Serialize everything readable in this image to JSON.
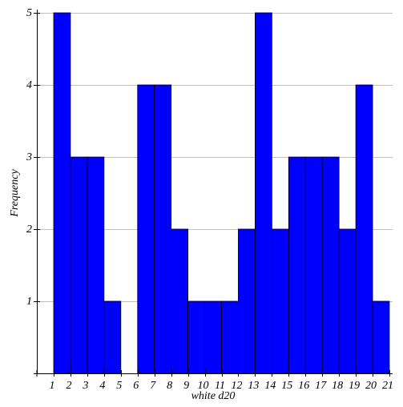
{
  "chart_data": {
    "type": "bar",
    "title": "",
    "xlabel": "white d20",
    "ylabel": "Frequency",
    "x_ticks": [
      "1",
      "2",
      "3",
      "4",
      "5",
      "6",
      "7",
      "8",
      "9",
      "10",
      "11",
      "12",
      "13",
      "14",
      "15",
      "16",
      "17",
      "18",
      "19",
      "20",
      "21"
    ],
    "bins": [
      {
        "start": 1,
        "end": 2,
        "value": 5
      },
      {
        "start": 2,
        "end": 3,
        "value": 3
      },
      {
        "start": 3,
        "end": 4,
        "value": 3
      },
      {
        "start": 4,
        "end": 5,
        "value": 1
      },
      {
        "start": 5,
        "end": 6,
        "value": 0
      },
      {
        "start": 6,
        "end": 7,
        "value": 4
      },
      {
        "start": 7,
        "end": 8,
        "value": 4
      },
      {
        "start": 8,
        "end": 9,
        "value": 2
      },
      {
        "start": 9,
        "end": 10,
        "value": 1
      },
      {
        "start": 10,
        "end": 11,
        "value": 1
      },
      {
        "start": 11,
        "end": 12,
        "value": 1
      },
      {
        "start": 12,
        "end": 13,
        "value": 2
      },
      {
        "start": 13,
        "end": 14,
        "value": 5
      },
      {
        "start": 14,
        "end": 15,
        "value": 2
      },
      {
        "start": 15,
        "end": 16,
        "value": 3
      },
      {
        "start": 16,
        "end": 17,
        "value": 3
      },
      {
        "start": 17,
        "end": 18,
        "value": 3
      },
      {
        "start": 18,
        "end": 19,
        "value": 2
      },
      {
        "start": 19,
        "end": 20,
        "value": 4
      },
      {
        "start": 20,
        "end": 21,
        "value": 1
      }
    ],
    "y_ticks": [
      "1",
      "2",
      "3",
      "4",
      "5"
    ],
    "xlim": [
      0,
      21
    ],
    "ylim": [
      0,
      5
    ],
    "grid": true,
    "bar_color": "#0000ff",
    "bar_edge_color": "#000000",
    "grid_color": "#c0c0c0"
  }
}
